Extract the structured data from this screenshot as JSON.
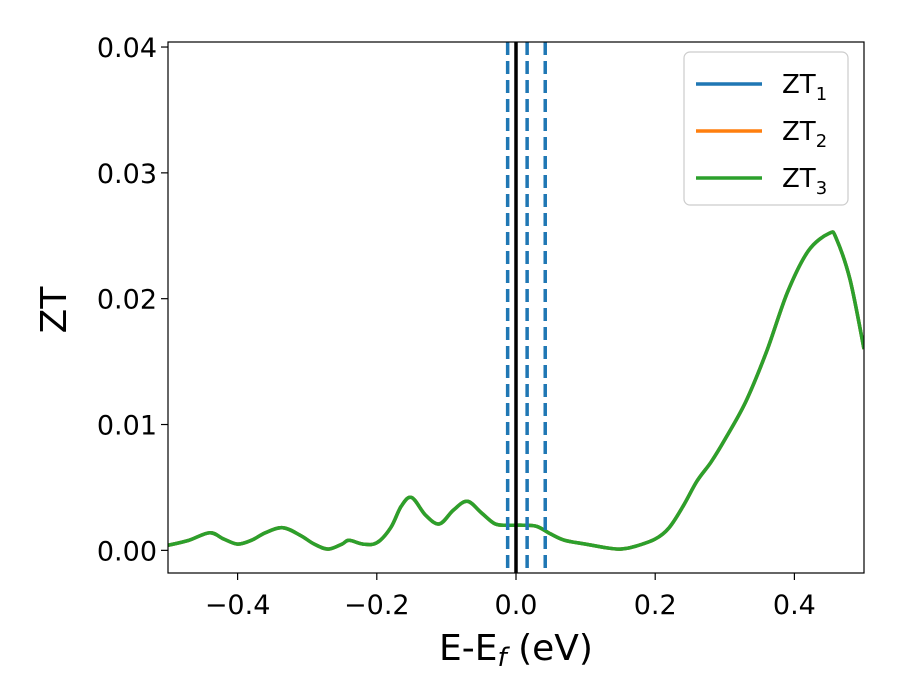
{
  "chart_data": {
    "type": "line",
    "xlabel": {
      "main": "E-E",
      "sub": "f",
      "tail": " (eV)"
    },
    "ylabel": "ZT",
    "xlim": [
      -0.5,
      0.5
    ],
    "ylim": [
      -0.0018,
      0.0404
    ],
    "x_ticks": [
      -0.4,
      -0.2,
      0.0,
      0.2,
      0.4
    ],
    "x_tick_labels": [
      "−0.4",
      "−0.2",
      "0.0",
      "0.2",
      "0.4"
    ],
    "y_ticks": [
      0.0,
      0.01,
      0.02,
      0.03,
      0.04
    ],
    "y_tick_labels": [
      "0.00",
      "0.01",
      "0.02",
      "0.03",
      "0.04"
    ],
    "grid": false,
    "legend_position": "top-right",
    "series": [
      {
        "name": "ZT",
        "subscript": "1",
        "color": "#1f77b4"
      },
      {
        "name": "ZT",
        "subscript": "2",
        "color": "#ff7f0e"
      },
      {
        "name": "ZT",
        "subscript": "3",
        "color": "#2ca02c"
      }
    ],
    "curve": {
      "color": "#2ca02c",
      "x": [
        -0.5,
        -0.47,
        -0.44,
        -0.42,
        -0.4,
        -0.38,
        -0.36,
        -0.335,
        -0.31,
        -0.29,
        -0.27,
        -0.25,
        -0.24,
        -0.22,
        -0.2,
        -0.18,
        -0.165,
        -0.15,
        -0.13,
        -0.11,
        -0.09,
        -0.07,
        -0.05,
        -0.03,
        -0.01,
        0.01,
        0.03,
        0.05,
        0.07,
        0.1,
        0.13,
        0.15,
        0.17,
        0.2,
        0.22,
        0.24,
        0.26,
        0.28,
        0.3,
        0.33,
        0.36,
        0.39,
        0.42,
        0.45,
        0.46,
        0.48,
        0.5
      ],
      "y": [
        0.0004,
        0.0008,
        0.0014,
        0.0009,
        0.0005,
        0.0008,
        0.0014,
        0.0018,
        0.0012,
        0.0005,
        0.0001,
        0.0005,
        0.0008,
        0.0005,
        0.0006,
        0.0018,
        0.0035,
        0.0042,
        0.0028,
        0.0021,
        0.0032,
        0.0039,
        0.003,
        0.0021,
        0.002,
        0.002,
        0.0019,
        0.0013,
        0.0008,
        0.0005,
        0.0002,
        0.0001,
        0.0003,
        0.0009,
        0.0018,
        0.0035,
        0.0055,
        0.007,
        0.0088,
        0.0118,
        0.0158,
        0.0205,
        0.0238,
        0.0252,
        0.0248,
        0.0215,
        0.016
      ]
    },
    "vlines": [
      {
        "x": 0.0,
        "style": "solid",
        "color": "#000000"
      },
      {
        "x": -0.012,
        "style": "dashed",
        "color": "#1f77b4"
      },
      {
        "x": 0.016,
        "style": "dashed",
        "color": "#1f77b4"
      },
      {
        "x": 0.042,
        "style": "dashed",
        "color": "#1f77b4"
      }
    ]
  }
}
